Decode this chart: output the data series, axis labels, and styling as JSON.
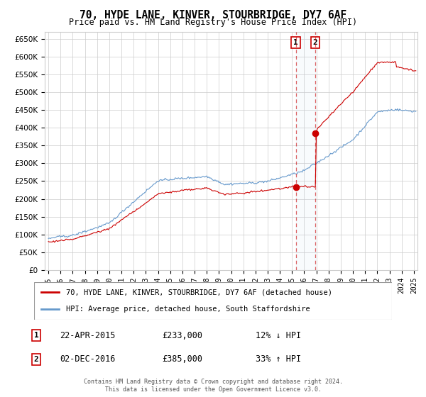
{
  "title": "70, HYDE LANE, KINVER, STOURBRIDGE, DY7 6AF",
  "subtitle": "Price paid vs. HM Land Registry's House Price Index (HPI)",
  "ylim": [
    0,
    670000
  ],
  "yticks": [
    0,
    50000,
    100000,
    150000,
    200000,
    250000,
    300000,
    350000,
    400000,
    450000,
    500000,
    550000,
    600000,
    650000
  ],
  "ytick_labels": [
    "£0",
    "£50K",
    "£100K",
    "£150K",
    "£200K",
    "£250K",
    "£300K",
    "£350K",
    "£400K",
    "£450K",
    "£500K",
    "£550K",
    "£600K",
    "£650K"
  ],
  "sale1_date": "22-APR-2015",
  "sale1_price": 233000,
  "sale1_hpi_diff": "12% ↓ HPI",
  "sale2_date": "02-DEC-2016",
  "sale2_price": 385000,
  "sale2_hpi_diff": "33% ↑ HPI",
  "legend_line1": "70, HYDE LANE, KINVER, STOURBRIDGE, DY7 6AF (detached house)",
  "legend_line2": "HPI: Average price, detached house, South Staffordshire",
  "footer1": "Contains HM Land Registry data © Crown copyright and database right 2024.",
  "footer2": "This data is licensed under the Open Government Licence v3.0.",
  "red_color": "#cc0000",
  "blue_color": "#6699cc",
  "sale1_x": 2015.31,
  "sale2_x": 2016.92,
  "bg_color": "#ffffff",
  "grid_color": "#cccccc",
  "xlim_left": 1994.7,
  "xlim_right": 2025.3
}
